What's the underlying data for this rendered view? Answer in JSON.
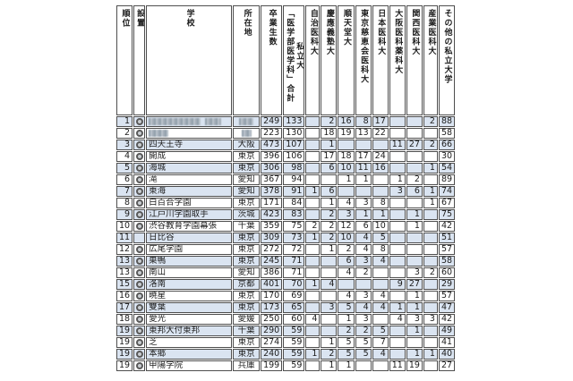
{
  "table": {
    "columns": [
      {
        "key": "rank",
        "label": "順位"
      },
      {
        "key": "type",
        "label": "設置"
      },
      {
        "key": "school",
        "label": "学校"
      },
      {
        "key": "pref",
        "label": "所在地"
      },
      {
        "key": "grads",
        "label": "卒業生数"
      },
      {
        "key": "total",
        "label": "私立大\n「医学部医学科」合計"
      },
      {
        "key": "jichi",
        "label": "自治医科大"
      },
      {
        "key": "keio",
        "label": "慶應義塾大"
      },
      {
        "key": "junten",
        "label": "順天堂大"
      },
      {
        "key": "jikei",
        "label": "東京慈恵会医科大"
      },
      {
        "key": "nihon",
        "label": "日本医科大"
      },
      {
        "key": "osaka",
        "label": "大阪医科薬科大"
      },
      {
        "key": "kansai",
        "label": "関西医科大"
      },
      {
        "key": "sangyo",
        "label": "産業医科大"
      },
      {
        "key": "other",
        "label": "その他の私立大学"
      }
    ],
    "rows": [
      {
        "rank": "1",
        "private": true,
        "school": "",
        "pref": "",
        "school_redacted": true,
        "pref_redacted": true,
        "grads": "249",
        "total": "133",
        "jichi": "",
        "keio": "2",
        "junten": "16",
        "jikei": "8",
        "nihon": "17",
        "osaka": "",
        "kansai": "",
        "sangyo": "2",
        "other": "88"
      },
      {
        "rank": "2",
        "private": true,
        "school": "",
        "pref": "",
        "school_redacted": true,
        "pref_redacted": true,
        "grads": "223",
        "total": "130",
        "jichi": "",
        "keio": "18",
        "junten": "19",
        "jikei": "13",
        "nihon": "22",
        "osaka": "",
        "kansai": "",
        "sangyo": "",
        "other": "58"
      },
      {
        "rank": "3",
        "private": true,
        "school": "四天王寺",
        "pref": "大阪",
        "grads": "473",
        "total": "107",
        "jichi": "",
        "keio": "1",
        "junten": "",
        "jikei": "",
        "nihon": "",
        "osaka": "11",
        "kansai": "27",
        "sangyo": "2",
        "other": "66"
      },
      {
        "rank": "4",
        "private": true,
        "school": "開成",
        "pref": "東京",
        "grads": "396",
        "total": "106",
        "jichi": "",
        "keio": "17",
        "junten": "18",
        "jikei": "17",
        "nihon": "24",
        "osaka": "",
        "kansai": "",
        "sangyo": "",
        "other": "30"
      },
      {
        "rank": "5",
        "private": true,
        "school": "海城",
        "pref": "東京",
        "grads": "306",
        "total": "98",
        "jichi": "",
        "keio": "6",
        "junten": "10",
        "jikei": "11",
        "nihon": "16",
        "osaka": "",
        "kansai": "",
        "sangyo": "1",
        "other": "54"
      },
      {
        "rank": "6",
        "private": true,
        "school": "滝",
        "pref": "愛知",
        "grads": "367",
        "total": "94",
        "jichi": "",
        "keio": "",
        "junten": "1",
        "jikei": "1",
        "nihon": "",
        "osaka": "1",
        "kansai": "2",
        "sangyo": "",
        "other": "89"
      },
      {
        "rank": "7",
        "private": true,
        "school": "東海",
        "pref": "愛知",
        "grads": "378",
        "total": "91",
        "jichi": "1",
        "keio": "6",
        "junten": "",
        "jikei": "",
        "nihon": "",
        "osaka": "3",
        "kansai": "6",
        "sangyo": "1",
        "other": "74"
      },
      {
        "rank": "8",
        "private": true,
        "school": "白百合学園",
        "pref": "東京",
        "grads": "171",
        "total": "84",
        "jichi": "",
        "keio": "1",
        "junten": "4",
        "jikei": "3",
        "nihon": "8",
        "osaka": "",
        "kansai": "",
        "sangyo": "1",
        "other": "67"
      },
      {
        "rank": "9",
        "private": true,
        "school": "江戸川学園取手",
        "pref": "茨城",
        "grads": "423",
        "total": "83",
        "jichi": "",
        "keio": "2",
        "junten": "3",
        "jikei": "1",
        "nihon": "1",
        "osaka": "",
        "kansai": "1",
        "sangyo": "",
        "other": "75"
      },
      {
        "rank": "10",
        "private": true,
        "school": "渋谷教育学園幕張",
        "pref": "千葉",
        "grads": "359",
        "total": "75",
        "jichi": "2",
        "keio": "2",
        "junten": "12",
        "jikei": "6",
        "nihon": "10",
        "osaka": "",
        "kansai": "1",
        "sangyo": "",
        "other": "42"
      },
      {
        "rank": "11",
        "private": false,
        "school": "日比谷",
        "pref": "東京",
        "grads": "309",
        "total": "73",
        "jichi": "1",
        "keio": "2",
        "junten": "10",
        "jikei": "4",
        "nihon": "5",
        "osaka": "",
        "kansai": "",
        "sangyo": "",
        "other": "51"
      },
      {
        "rank": "12",
        "private": true,
        "school": "広尾学園",
        "pref": "東京",
        "grads": "272",
        "total": "72",
        "jichi": "",
        "keio": "1",
        "junten": "2",
        "jikei": "4",
        "nihon": "8",
        "osaka": "",
        "kansai": "",
        "sangyo": "",
        "other": "57"
      },
      {
        "rank": "13",
        "private": true,
        "school": "巣鴨",
        "pref": "東京",
        "grads": "245",
        "total": "71",
        "jichi": "",
        "keio": "",
        "junten": "6",
        "jikei": "3",
        "nihon": "4",
        "osaka": "",
        "kansai": "",
        "sangyo": "",
        "other": "58"
      },
      {
        "rank": "13",
        "private": true,
        "school": "南山",
        "pref": "愛知",
        "grads": "386",
        "total": "71",
        "jichi": "",
        "keio": "",
        "junten": "4",
        "jikei": "2",
        "nihon": "",
        "osaka": "",
        "kansai": "3",
        "sangyo": "2",
        "other": "60"
      },
      {
        "rank": "15",
        "private": true,
        "school": "洛南",
        "pref": "京都",
        "grads": "401",
        "total": "70",
        "jichi": "1",
        "keio": "4",
        "junten": "",
        "jikei": "",
        "nihon": "",
        "osaka": "9",
        "kansai": "27",
        "sangyo": "",
        "other": "29"
      },
      {
        "rank": "16",
        "private": true,
        "school": "暁星",
        "pref": "東京",
        "grads": "170",
        "total": "69",
        "jichi": "",
        "keio": "",
        "junten": "4",
        "jikei": "3",
        "nihon": "4",
        "osaka": "",
        "kansai": "1",
        "sangyo": "",
        "other": "57"
      },
      {
        "rank": "17",
        "private": true,
        "school": "雙葉",
        "pref": "東京",
        "grads": "173",
        "total": "65",
        "jichi": "",
        "keio": "3",
        "junten": "5",
        "jikei": "4",
        "nihon": "4",
        "osaka": "1",
        "kansai": "1",
        "sangyo": "",
        "other": "47"
      },
      {
        "rank": "18",
        "private": true,
        "school": "愛光",
        "pref": "愛媛",
        "grads": "250",
        "total": "60",
        "jichi": "4",
        "keio": "",
        "junten": "1",
        "jikei": "3",
        "nihon": "",
        "osaka": "4",
        "kansai": "3",
        "sangyo": "3",
        "other": "42"
      },
      {
        "rank": "19",
        "private": true,
        "school": "東邦大付東邦",
        "pref": "千葉",
        "grads": "290",
        "total": "59",
        "jichi": "",
        "keio": "",
        "junten": "2",
        "jikei": "2",
        "nihon": "5",
        "osaka": "",
        "kansai": "1",
        "sangyo": "",
        "other": "49"
      },
      {
        "rank": "19",
        "private": true,
        "school": "芝",
        "pref": "東京",
        "grads": "274",
        "total": "59",
        "jichi": "",
        "keio": "1",
        "junten": "5",
        "jikei": "5",
        "nihon": "7",
        "osaka": "",
        "kansai": "",
        "sangyo": "",
        "other": "41"
      },
      {
        "rank": "19",
        "private": true,
        "school": "本郷",
        "pref": "東京",
        "grads": "240",
        "total": "59",
        "jichi": "1",
        "keio": "2",
        "junten": "5",
        "jikei": "5",
        "nihon": "4",
        "osaka": "",
        "kansai": "1",
        "sangyo": "1",
        "other": "40"
      },
      {
        "rank": "19",
        "private": true,
        "school": "甲陽学院",
        "pref": "兵庫",
        "grads": "199",
        "total": "59",
        "jichi": "",
        "keio": "1",
        "junten": "1",
        "jikei": "",
        "nihon": "",
        "osaka": "11",
        "kansai": "19",
        "sangyo": "",
        "other": "27"
      }
    ]
  },
  "colors": {
    "row_alt_background": "#dae4f1",
    "border": "#4e4e4e",
    "text": "#1c1c1c"
  }
}
